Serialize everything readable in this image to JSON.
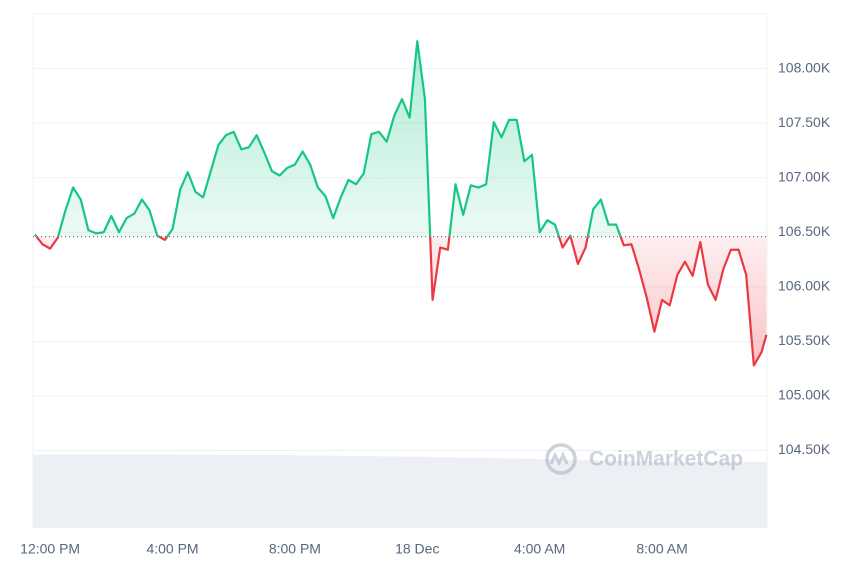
{
  "chart_data": {
    "type": "line",
    "x": [
      -0.5,
      -0.25,
      0,
      0.25,
      0.5,
      0.75,
      1,
      1.25,
      1.5,
      1.75,
      2,
      2.25,
      2.5,
      2.75,
      3,
      3.25,
      3.5,
      3.75,
      4,
      4.25,
      4.5,
      4.75,
      5,
      5.25,
      5.5,
      5.75,
      6,
      6.25,
      6.5,
      6.75,
      7,
      7.25,
      7.5,
      7.75,
      8,
      8.25,
      8.5,
      8.75,
      9,
      9.25,
      9.5,
      9.75,
      10,
      10.25,
      10.5,
      10.75,
      11,
      11.25,
      11.5,
      11.75,
      12,
      12.25,
      12.5,
      12.75,
      13,
      13.25,
      13.5,
      13.75,
      14,
      14.25,
      14.5,
      14.75,
      15,
      15.25,
      15.5,
      15.75,
      16,
      16.25,
      16.5,
      16.75,
      17,
      17.25,
      17.5,
      17.75,
      18,
      18.25,
      18.5,
      18.75,
      19,
      19.25,
      19.5,
      19.75,
      20,
      20.25,
      20.5,
      20.75,
      21,
      21.25,
      21.5,
      21.75,
      22,
      22.25,
      22.5,
      22.75,
      23,
      23.25,
      23.41
    ],
    "values": [
      106.48,
      106.39,
      106.35,
      106.45,
      106.7,
      106.91,
      106.8,
      106.52,
      106.49,
      106.5,
      106.65,
      106.5,
      106.63,
      106.67,
      106.8,
      106.7,
      106.47,
      106.43,
      106.53,
      106.89,
      107.05,
      106.87,
      106.82,
      107.06,
      107.3,
      107.39,
      107.42,
      107.26,
      107.28,
      107.39,
      107.23,
      107.06,
      107.02,
      107.09,
      107.12,
      107.24,
      107.12,
      106.91,
      106.83,
      106.63,
      106.82,
      106.98,
      106.94,
      107.04,
      107.4,
      107.42,
      107.33,
      107.57,
      107.72,
      107.55,
      108.25,
      107.72,
      105.88,
      106.36,
      106.34,
      106.94,
      106.66,
      106.93,
      106.91,
      106.94,
      107.51,
      107.37,
      107.53,
      107.53,
      107.15,
      107.21,
      106.5,
      106.61,
      106.57,
      106.36,
      106.47,
      106.21,
      106.36,
      106.71,
      106.8,
      106.57,
      106.57,
      106.38,
      106.39,
      106.16,
      105.9,
      105.59,
      105.88,
      105.83,
      106.11,
      106.23,
      106.1,
      106.41,
      106.02,
      105.88,
      106.16,
      106.34,
      106.34,
      106.11,
      105.28,
      105.4,
      105.56
    ],
    "baseline": 106.46,
    "up_color": "#16c784",
    "down_color": "#ea3943",
    "volume": {
      "color": "#eceff3",
      "x": [
        -0.56,
        4,
        8,
        12,
        16,
        20,
        23.43
      ],
      "values": [
        100,
        100,
        99,
        97,
        94,
        90,
        90
      ]
    },
    "xlim": [
      -0.56,
      23.43
    ],
    "xticks": [
      {
        "value": 0,
        "label": "12:00 PM"
      },
      {
        "value": 4,
        "label": "4:00 PM"
      },
      {
        "value": 8,
        "label": "8:00 PM"
      },
      {
        "value": 12,
        "label": "18 Dec"
      },
      {
        "value": 16,
        "label": "4:00 AM"
      },
      {
        "value": 20,
        "label": "8:00 AM"
      }
    ],
    "ylim": [
      103.79,
      108.5
    ],
    "yticks": [
      {
        "value": 108,
        "label": "108.00K"
      },
      {
        "value": 107.5,
        "label": "107.50K"
      },
      {
        "value": 107,
        "label": "107.00K"
      },
      {
        "value": 106.5,
        "label": "106.50K"
      },
      {
        "value": 106,
        "label": "106.00K"
      },
      {
        "value": 105.5,
        "label": "105.50K"
      },
      {
        "value": 105,
        "label": "105.00K"
      },
      {
        "value": 104.5,
        "label": "104.50K"
      }
    ],
    "y2lim": [
      0,
      700
    ],
    "grid": true,
    "watermark": "CoinMarketCap"
  }
}
